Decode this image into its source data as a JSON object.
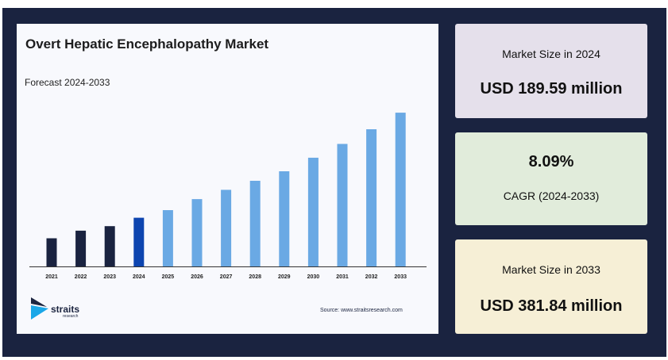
{
  "chart_data": {
    "type": "bar",
    "title": "Overt Hepatic Encephalopathy Market",
    "subtitle": "Forecast 2024-2033",
    "categories": [
      "2021",
      "2022",
      "2023",
      "2024",
      "2025",
      "2026",
      "2027",
      "2028",
      "2029",
      "2030",
      "2031",
      "2032",
      "2033"
    ],
    "values": [
      1.0,
      1.27,
      1.43,
      1.73,
      2.0,
      2.39,
      2.72,
      3.04,
      3.38,
      3.86,
      4.35,
      4.87,
      5.46
    ],
    "colors": [
      "#1a2340",
      "#1a2340",
      "#1a2340",
      "#0d45b0",
      "#6aa9e4",
      "#6aa9e4",
      "#6aa9e4",
      "#6aa9e4",
      "#6aa9e4",
      "#6aa9e4",
      "#6aa9e4",
      "#6aa9e4",
      "#6aa9e4"
    ],
    "ylim": [
      0,
      5.8
    ],
    "xlabel": "",
    "ylabel": "",
    "grid": false
  },
  "brand": {
    "name": "straits",
    "tagline": "research"
  },
  "source": "Source: www.straitsresearch.com",
  "stats": [
    {
      "label": "Market Size in 2024",
      "value": "USD 189.59 million"
    },
    {
      "value": "8.09%",
      "label": "CAGR (2024-2033)"
    },
    {
      "label": "Market Size in 2033",
      "value": "USD 381.84 million"
    }
  ],
  "colors": {
    "frame": "#1a2340",
    "past_bar": "#1a2340",
    "current_bar": "#0d45b0",
    "forecast_bar": "#6aa9e4"
  }
}
